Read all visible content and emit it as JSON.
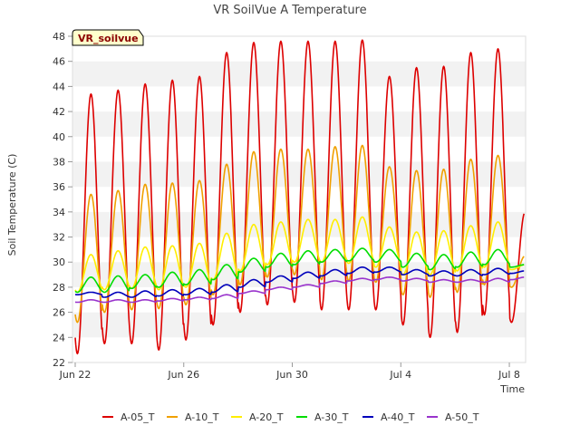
{
  "chart_data": {
    "type": "line",
    "title": "VR SoilVue A Temperature",
    "xlabel": "Time",
    "ylabel": "Soil Temperature (C)",
    "badge": "VR_soilvue",
    "ylim": [
      22,
      48
    ],
    "yticks": [
      22,
      24,
      26,
      28,
      30,
      32,
      34,
      36,
      38,
      40,
      42,
      44,
      46,
      48
    ],
    "xlim_days": [
      -0.1,
      16.6
    ],
    "xticks": [
      {
        "label": "Jun 22",
        "day": 0
      },
      {
        "label": "Jun 26",
        "day": 4
      },
      {
        "label": "Jun 30",
        "day": 8
      },
      {
        "label": "Jul 4",
        "day": 12
      },
      {
        "label": "Jul 8",
        "day": 16
      }
    ],
    "grid": true,
    "legend_position": "bottom",
    "daily_cycles": {
      "days": [
        0,
        1,
        2,
        3,
        4,
        5,
        6,
        7,
        8,
        9,
        10,
        11,
        12,
        13,
        14,
        15,
        16
      ],
      "peak_offset_day": 0.58
    },
    "series": [
      {
        "name": "A-05_T",
        "color": "#dd0000",
        "min": [
          22.7,
          23.5,
          23.5,
          23.0,
          23.8,
          25.0,
          26.0,
          26.6,
          26.8,
          26.2,
          26.2,
          26.2,
          25.0,
          24.0,
          24.4,
          25.8,
          25.2
        ],
        "max": [
          43.4,
          43.7,
          44.2,
          44.5,
          44.8,
          46.7,
          47.5,
          47.6,
          47.6,
          47.6,
          47.7,
          44.8,
          45.5,
          45.6,
          46.7,
          47.0,
          34.0
        ]
      },
      {
        "name": "A-10_T",
        "color": "#f0a000",
        "min": [
          25.2,
          26.0,
          26.2,
          26.3,
          26.6,
          27.4,
          28.2,
          28.8,
          29.0,
          28.6,
          28.5,
          28.4,
          27.4,
          27.2,
          27.6,
          28.2,
          28.0
        ],
        "max": [
          35.4,
          35.7,
          36.2,
          36.3,
          36.5,
          37.8,
          38.8,
          39.0,
          39.0,
          39.2,
          39.3,
          37.6,
          37.3,
          37.4,
          38.2,
          38.5,
          30.5
        ]
      },
      {
        "name": "A-20_T",
        "color": "#ffee00",
        "min": [
          27.6,
          27.8,
          27.9,
          27.8,
          28.0,
          28.6,
          29.3,
          29.8,
          30.0,
          30.0,
          29.9,
          29.6,
          29.0,
          29.0,
          29.3,
          29.6,
          29.4
        ],
        "max": [
          30.6,
          30.9,
          31.2,
          31.3,
          31.5,
          32.3,
          33.0,
          33.2,
          33.4,
          33.4,
          33.6,
          32.8,
          32.4,
          32.5,
          32.9,
          33.2,
          29.8
        ]
      },
      {
        "name": "A-30_T",
        "color": "#00dd00",
        "min": [
          27.6,
          27.6,
          27.9,
          28.0,
          28.2,
          28.6,
          29.2,
          29.6,
          29.8,
          30.0,
          30.1,
          30.0,
          29.6,
          29.4,
          29.6,
          29.8,
          29.6
        ],
        "max": [
          28.8,
          28.9,
          29.0,
          29.2,
          29.4,
          29.8,
          30.3,
          30.7,
          30.9,
          31.0,
          31.1,
          31.0,
          30.7,
          30.6,
          30.8,
          31.0,
          29.8
        ]
      },
      {
        "name": "A-40_T",
        "color": "#0000bb",
        "min": [
          27.4,
          27.2,
          27.2,
          27.3,
          27.4,
          27.6,
          28.0,
          28.4,
          28.7,
          28.9,
          29.1,
          29.2,
          29.0,
          28.9,
          28.9,
          29.0,
          29.1
        ],
        "max": [
          27.6,
          27.6,
          27.7,
          27.8,
          27.9,
          28.2,
          28.6,
          28.9,
          29.2,
          29.4,
          29.6,
          29.6,
          29.4,
          29.3,
          29.4,
          29.5,
          29.3
        ]
      },
      {
        "name": "A-50_T",
        "color": "#9933cc",
        "min": [
          26.8,
          26.8,
          26.8,
          26.9,
          27.0,
          27.1,
          27.5,
          27.8,
          28.0,
          28.3,
          28.5,
          28.6,
          28.5,
          28.4,
          28.4,
          28.4,
          28.6
        ],
        "max": [
          27.0,
          27.0,
          27.0,
          27.1,
          27.2,
          27.4,
          27.7,
          28.0,
          28.2,
          28.5,
          28.7,
          28.8,
          28.7,
          28.6,
          28.6,
          28.7,
          28.8
        ]
      }
    ]
  }
}
